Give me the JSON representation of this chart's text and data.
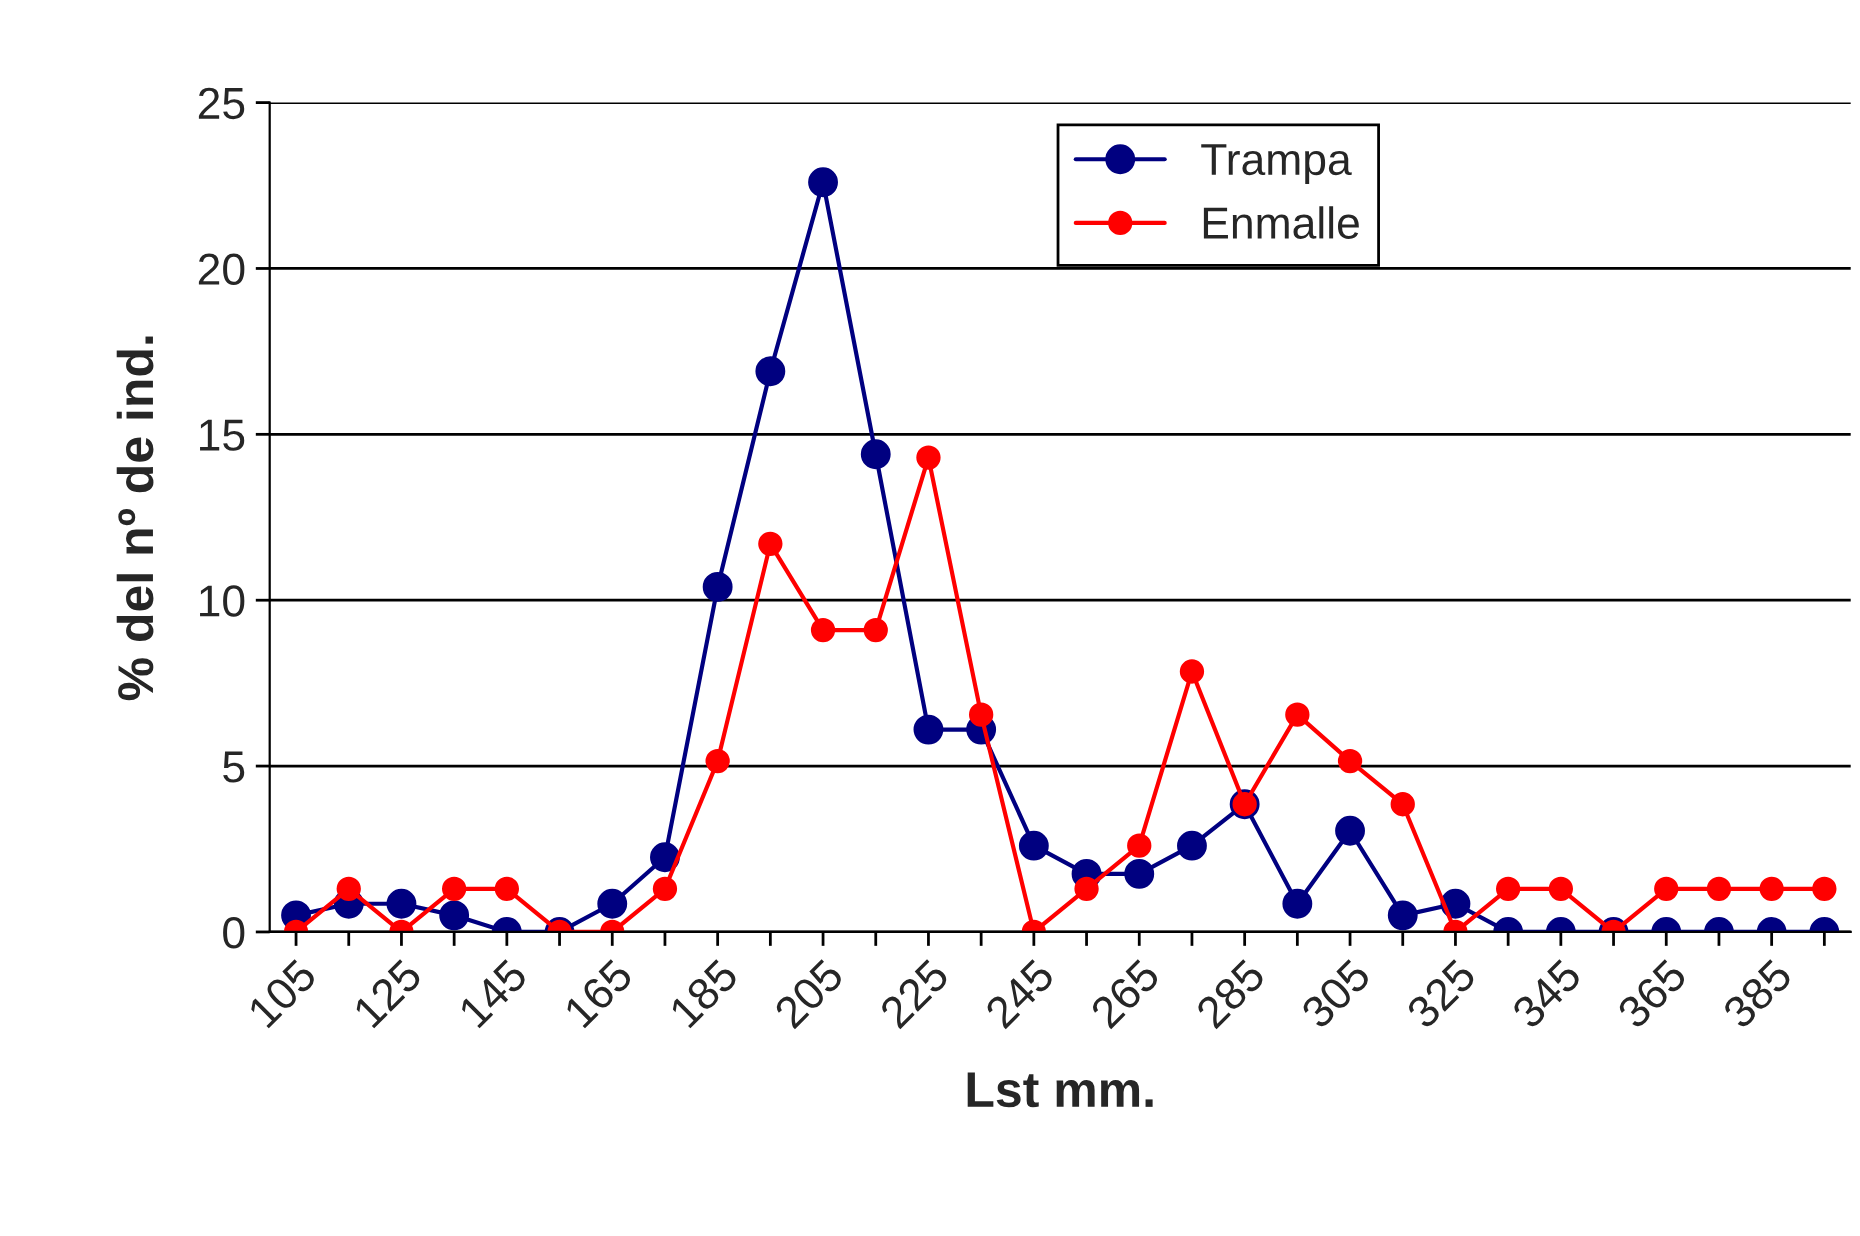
{
  "chart_data": {
    "type": "line",
    "xlabel": "Lst mm.",
    "ylabel": "% del nº de ind.",
    "categories": [
      "105",
      null,
      "125",
      null,
      "145",
      null,
      "165",
      null,
      "185",
      null,
      "205",
      null,
      "225",
      null,
      "245",
      null,
      "265",
      null,
      "285",
      null,
      "305",
      null,
      "325",
      null,
      "345",
      null,
      "365",
      null,
      "385",
      null
    ],
    "series": [
      {
        "name": "Trampa",
        "color": "#000080",
        "values": [
          0.5,
          0.85,
          0.85,
          0.5,
          0,
          0,
          0.85,
          2.25,
          10.4,
          16.9,
          22.6,
          14.4,
          6.1,
          6.1,
          2.6,
          1.75,
          1.75,
          2.6,
          3.85,
          0.85,
          3.05,
          0.5,
          0.85,
          0,
          0,
          0,
          0,
          0,
          0,
          0
        ]
      },
      {
        "name": "Enmalle",
        "color": "#ff0000",
        "values": [
          0,
          1.3,
          0,
          1.3,
          1.3,
          0,
          0,
          1.3,
          5.15,
          11.7,
          9.1,
          9.1,
          14.3,
          6.55,
          0,
          1.3,
          2.6,
          7.85,
          3.85,
          6.55,
          5.15,
          3.85,
          0,
          1.3,
          1.3,
          0,
          1.3,
          1.3,
          1.3,
          1.3
        ]
      }
    ],
    "ylim": [
      0,
      25
    ],
    "yticks": [
      0,
      5,
      10,
      15,
      20,
      25
    ],
    "grid": "y",
    "legend": "top",
    "marker": "circle",
    "line_style": "solid"
  }
}
